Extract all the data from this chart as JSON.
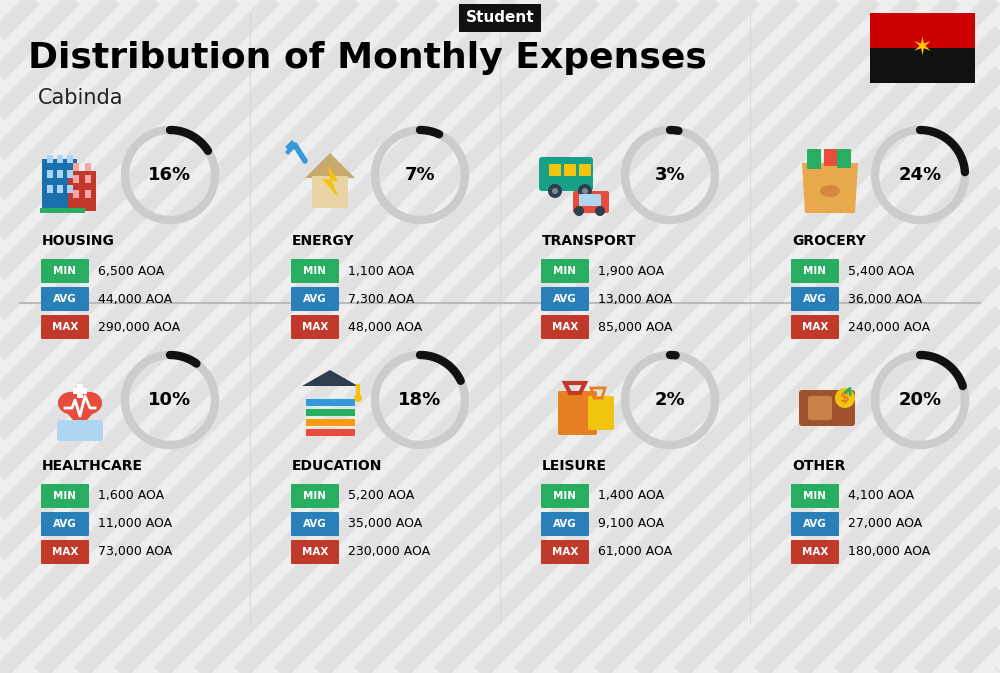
{
  "title": "Distribution of Monthly Expenses",
  "subtitle": "Student",
  "location": "Cabinda",
  "bg_color": "#eeeeee",
  "categories": [
    {
      "name": "HOUSING",
      "pct": 16,
      "min": "6,500 AOA",
      "avg": "44,000 AOA",
      "max": "290,000 AOA",
      "col": 0,
      "row": 0
    },
    {
      "name": "ENERGY",
      "pct": 7,
      "min": "1,100 AOA",
      "avg": "7,300 AOA",
      "max": "48,000 AOA",
      "col": 1,
      "row": 0
    },
    {
      "name": "TRANSPORT",
      "pct": 3,
      "min": "1,900 AOA",
      "avg": "13,000 AOA",
      "max": "85,000 AOA",
      "col": 2,
      "row": 0
    },
    {
      "name": "GROCERY",
      "pct": 24,
      "min": "5,400 AOA",
      "avg": "36,000 AOA",
      "max": "240,000 AOA",
      "col": 3,
      "row": 0
    },
    {
      "name": "HEALTHCARE",
      "pct": 10,
      "min": "1,600 AOA",
      "avg": "11,000 AOA",
      "max": "73,000 AOA",
      "col": 0,
      "row": 1
    },
    {
      "name": "EDUCATION",
      "pct": 18,
      "min": "5,200 AOA",
      "avg": "35,000 AOA",
      "max": "230,000 AOA",
      "col": 1,
      "row": 1
    },
    {
      "name": "LEISURE",
      "pct": 2,
      "min": "1,400 AOA",
      "avg": "9,100 AOA",
      "max": "61,000 AOA",
      "col": 2,
      "row": 1
    },
    {
      "name": "OTHER",
      "pct": 20,
      "min": "4,100 AOA",
      "avg": "27,000 AOA",
      "max": "180,000 AOA",
      "col": 3,
      "row": 1
    }
  ],
  "color_min": "#27ae60",
  "color_avg": "#2980b9",
  "color_max": "#c0392b",
  "arc_dark": "#111111",
  "arc_light": "#cccccc",
  "stripe_color": "#d5d5d5",
  "flag_red": "#cc0000",
  "flag_black": "#111111",
  "flag_yellow": "#ffcc00"
}
